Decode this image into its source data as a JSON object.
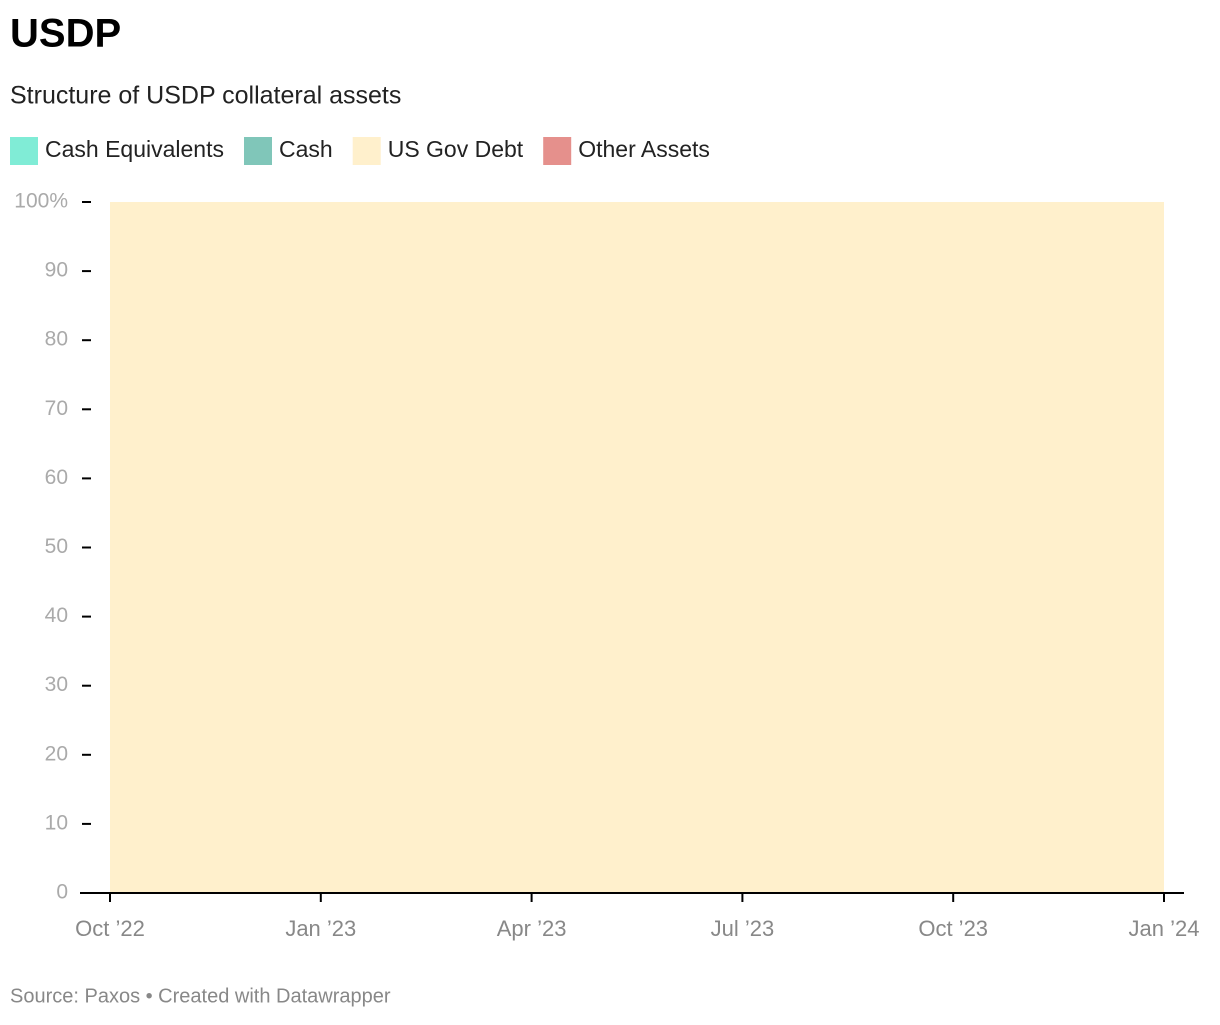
{
  "chart_data": {
    "type": "stacked_area",
    "title": "USDP",
    "subtitle": "Structure of USDP collateral assets",
    "source": "Source: Paxos • Created with Datawrapper",
    "x": [
      "Oct ’22",
      "Jan ’23",
      "Apr ’23",
      "Jul ’23",
      "Oct ’23",
      "Jan ’24"
    ],
    "series": [
      {
        "name": "Cash Equivalents",
        "color": "#80ecd6",
        "values": [
          0,
          0,
          0,
          0,
          0,
          0
        ]
      },
      {
        "name": "Cash",
        "color": "#80c6b9",
        "values": [
          0,
          0,
          0,
          0,
          0,
          0
        ]
      },
      {
        "name": "US Gov Debt",
        "color": "#fff0cc",
        "values": [
          100,
          100,
          100,
          100,
          100,
          100
        ]
      },
      {
        "name": "Other Assets",
        "color": "#e5908c",
        "values": [
          0,
          0,
          0,
          0,
          0,
          0
        ]
      }
    ],
    "ylim": [
      0,
      100
    ],
    "yticks": [
      0,
      10,
      20,
      30,
      40,
      50,
      60,
      70,
      80,
      90,
      {
        "value": 100,
        "label": "100%"
      }
    ],
    "legend": "top-left"
  }
}
